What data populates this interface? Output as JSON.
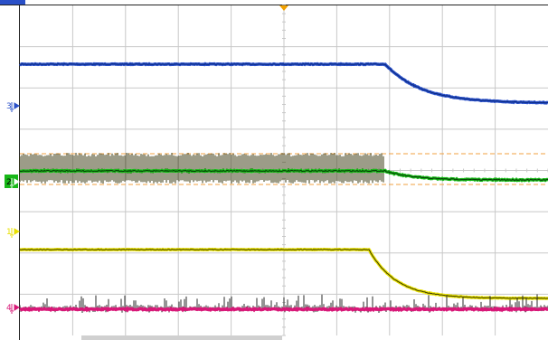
{
  "colors": {
    "background": "#ffffff",
    "grid": "#c8c8c8",
    "frame": "#222222",
    "ch1": "#e8e000",
    "ch2": "#18b818",
    "ch3": "#2a50c8",
    "ch4": "#d81878",
    "trigger": "#f0a000",
    "cursor": "#f0a040"
  },
  "graticule": {
    "divisions_x": 10,
    "divisions_y": 8
  },
  "channels": [
    {
      "id": "ch3",
      "marker": "3",
      "color_key": "ch3",
      "icon": "ground-arrow-icon"
    },
    {
      "id": "ch2",
      "marker": "2",
      "color_key": "ch2",
      "icon": "ground-arrow-icon"
    },
    {
      "id": "ch1",
      "marker": "1",
      "color_key": "ch1",
      "icon": "ground-arrow-icon"
    },
    {
      "id": "ch4",
      "marker": "4",
      "color_key": "ch4",
      "icon": "ground-arrow-icon"
    }
  ],
  "trigger_marker": {
    "icon": "trigger-position-icon"
  }
}
